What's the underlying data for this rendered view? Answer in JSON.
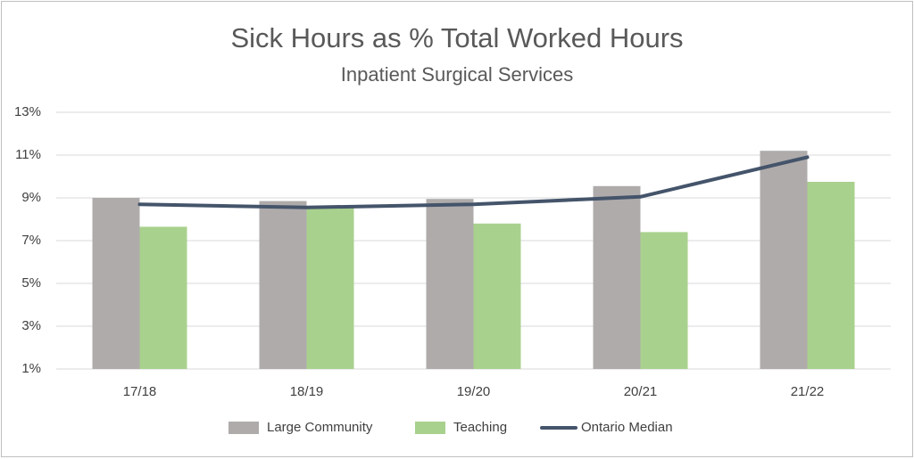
{
  "chart_data": {
    "type": "bar",
    "title": "Sick Hours as % Total Worked Hours",
    "subtitle": "Inpatient Surgical Services",
    "categories": [
      "17/18",
      "18/19",
      "19/20",
      "20/21",
      "21/22"
    ],
    "series": [
      {
        "name": "Large Community",
        "type": "bar",
        "color": "#afabab",
        "values": [
          9.0,
          8.85,
          8.95,
          9.55,
          11.2
        ]
      },
      {
        "name": "Teaching",
        "type": "bar",
        "color": "#a9d18e",
        "values": [
          7.65,
          8.55,
          7.8,
          7.4,
          9.75
        ]
      },
      {
        "name": "Ontario Median",
        "type": "line",
        "color": "#44546a",
        "values": [
          8.7,
          8.55,
          8.7,
          9.05,
          10.9
        ]
      }
    ],
    "ylim": [
      1,
      13
    ],
    "yticks": [
      {
        "value": 1,
        "label": "1%"
      },
      {
        "value": 3,
        "label": "3%"
      },
      {
        "value": 5,
        "label": "5%"
      },
      {
        "value": 7,
        "label": "7%"
      },
      {
        "value": 9,
        "label": "9%"
      },
      {
        "value": 11,
        "label": "11%"
      },
      {
        "value": 13,
        "label": "13%"
      }
    ],
    "grid": true,
    "legend": "bottom"
  }
}
